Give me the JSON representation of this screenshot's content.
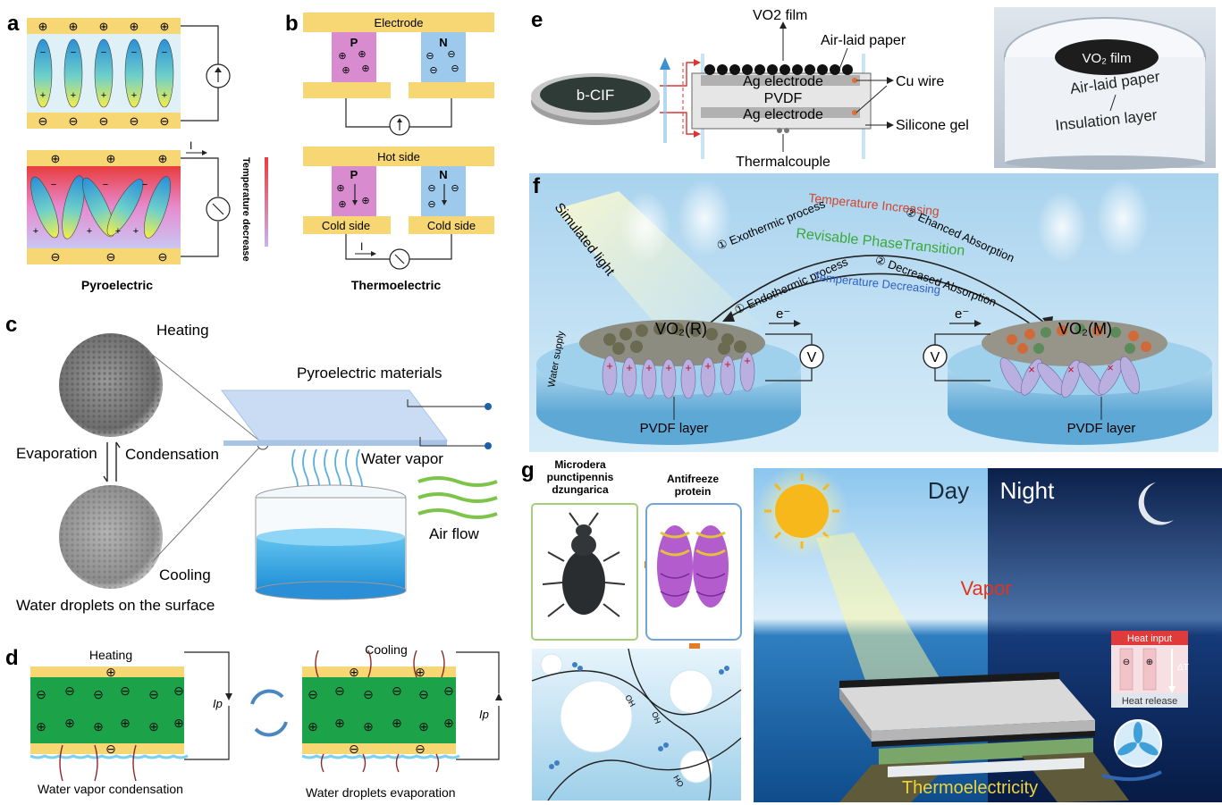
{
  "panel_letters": {
    "a": "a",
    "b": "b",
    "c": "c",
    "d": "d",
    "e": "e",
    "f": "f",
    "g": "g"
  },
  "panel_a": {
    "caption": "Pyroelectric",
    "current": "I",
    "axis_label": "Temperature decrease",
    "plus": "+",
    "minus": "−",
    "circ_plus": "⊕",
    "circ_minus": "⊖"
  },
  "panel_b": {
    "electrode": "Electrode",
    "hot_side": "Hot side",
    "cold_side": "Cold side",
    "p": "P",
    "n": "N",
    "current": "I",
    "caption": "Thermoelectric"
  },
  "panel_c": {
    "heating": "Heating",
    "cooling": "Cooling",
    "evaporation": "Evaporation",
    "condensation": "Condensation",
    "materials": "Pyroelectric materials",
    "vapor": "Water vapor",
    "air_flow": "Air flow",
    "droplets": "Water droplets on the surface"
  },
  "panel_d": {
    "heating": "Heating",
    "cooling": "Cooling",
    "ip": "Ip",
    "condensation": "Water vapor condensation",
    "evaporation": "Water droplets evaporation"
  },
  "panel_e": {
    "bcif": "b-CIF",
    "vo2_film": "VO2 film",
    "air_laid_paper": "Air-laid paper",
    "ag_top": "Ag electrode",
    "pvdf": "PVDF",
    "ag_bottom": "Ag electrode",
    "cu_wire": "Cu wire",
    "silicone_gel": "Silicone gel",
    "thermocouple": "Thermalcouple",
    "photo_vo2": "VO₂ film",
    "photo_paper": "Air-laid paper",
    "photo_insulation": "Insulation layer"
  },
  "panel_f": {
    "simulated_light": "Simulated light",
    "temp_increasing": "Temperature Increasing",
    "exothermic": "① Exothermic process",
    "enhanced": "② Ehanced Absorption",
    "revisable": "Revisable PhaseTransition",
    "endothermic": "① Endothermic process",
    "decreased": "② Decreased Absorption",
    "temp_decreasing": "Temperature Decreasing",
    "vo2_r": "VO₂(R)",
    "vo2_m": "VO₂(M)",
    "electron": "e⁻",
    "volt": "V",
    "water_supply": "Water supply",
    "pvdf_left": "PVDF layer",
    "pvdf_right": "PVDF layer"
  },
  "panel_g": {
    "beetle_label": "Microdera punctipennis dzungarica",
    "beetle_line1": "Microdera",
    "beetle_line2": "punctipennis",
    "beetle_line3": "dzungarica",
    "protein_line1": "Antifreeze",
    "protein_line2": "protein",
    "oh": "OH",
    "ho": "HO",
    "day": "Day",
    "night": "Night",
    "vapor": "Vapor",
    "heat_input": "Heat input",
    "heat_release": "Heat release",
    "delta_t": "ΔT",
    "thermoelectricity": "Thermoelectricity"
  },
  "colors": {
    "electrode_yellow": "#f7d774",
    "pvdf_green": "#1ca34a",
    "p_pink": "#d98bd0",
    "n_blue": "#9cc9ec",
    "sky": "#bfe0f2",
    "water_blue": "#3aa5df"
  }
}
